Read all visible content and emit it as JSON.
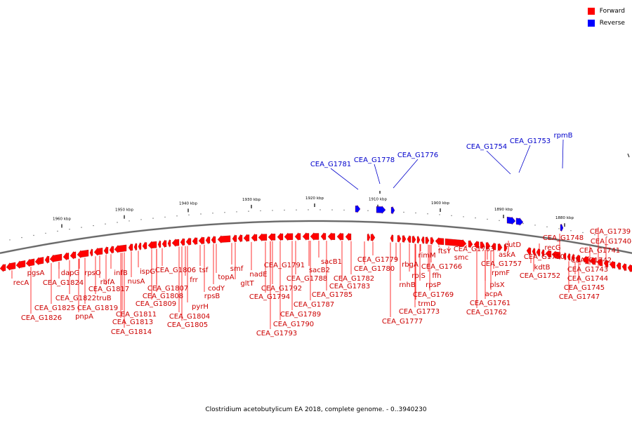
{
  "legend": {
    "forward_label": "Forward",
    "reverse_label": "Reverse",
    "forward_color": "#ff0000",
    "reverse_color": "#0000ff"
  },
  "caption": "Clostridium acetobutylicum EA 2018, complete genome. - 0..3940230",
  "scale_labels": [
    "1960 kbp",
    "1950 kbp",
    "1940 kbp",
    "1930 kbp",
    "1920 kbp",
    "1910 kbp",
    "1900 kbp",
    "1890 kbp",
    "1880 kbp"
  ],
  "forward_genes": [
    "pgsA",
    "recA",
    "CEA_G1824",
    "dapG",
    "CEA_G1822",
    "rpsO",
    "truB",
    "CEA_G1825",
    "CEA_G1826",
    "pnpA",
    "CEA_G1819",
    "rbfA",
    "CEA_G1817",
    "infB",
    "nusA",
    "CEA_G1813",
    "CEA_G1814",
    "CEA_G1811",
    "ispG",
    "CEA_G1809",
    "CEA_G1807",
    "CEA_G1808",
    "CEA_G1806",
    "frr",
    "tsf",
    "CEA_G1804",
    "CEA_G1805",
    "pyrH",
    "rpsB",
    "codY",
    "topA",
    "smf",
    "gltT",
    "nadE",
    "CEA_G1791",
    "CEA_G1792",
    "CEA_G1794",
    "CEA_G1788",
    "CEA_G1793",
    "CEA_G1790",
    "CEA_G1789",
    "CEA_G1787",
    "sacB2",
    "CEA_G1785",
    "sacB1",
    "CEA_G1783",
    "CEA_G1782",
    "CEA_G1780",
    "CEA_G1779",
    "CEA_G1777",
    "rnhB",
    "rbgA",
    "rplS",
    "CEA_G1773",
    "trmD",
    "rimM",
    "rpsP",
    "ffh",
    "CEA_G1769",
    "CEA_G1766",
    "ftsY",
    "smc",
    "CEA_G1763",
    "acpA",
    "CEA_G1762",
    "CEA_G1761",
    "plsX",
    "rpmF",
    "CEA_G1757",
    "askA",
    "eutD",
    "kdtB",
    "CEA_G1752",
    "recG",
    "CEA_G1750",
    "CEA_G1748",
    "CEA_G1747",
    "CEA_G1745",
    "CEA_G1744",
    "CEA_G1743",
    "CEA_G1742",
    "CEA_G1741",
    "CEA_G1740",
    "CEA_G1739"
  ],
  "reverse_genes": [
    "CEA_G1781",
    "CEA_G1778",
    "CEA_G1776",
    "CEA_G1754",
    "CEA_G1753",
    "rpmB"
  ]
}
